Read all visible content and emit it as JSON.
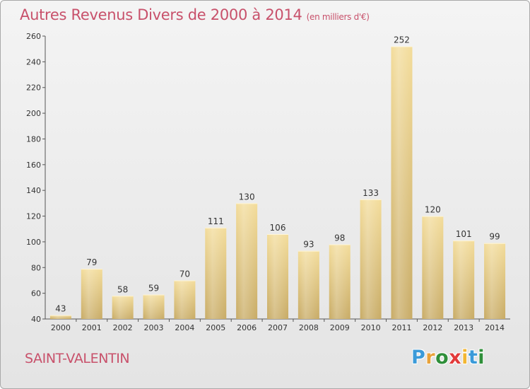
{
  "header": {
    "title": "Autres Revenus Divers de 2000 à 2014",
    "subtitle": "(en milliers d'€)"
  },
  "footer": {
    "city": "SAINT-VALENTIN",
    "logo_letters": [
      "P",
      "r",
      "o",
      "x",
      "i",
      "t",
      "i"
    ],
    "logo_colors": [
      "#3a9ad9",
      "#e8a23a",
      "#2f8f3a",
      "#e23b3b",
      "#f2b632",
      "#3a9ad9",
      "#2f8f3a"
    ]
  },
  "chart_data": {
    "type": "bar",
    "title": "Autres Revenus Divers de 2000 à 2014",
    "subtitle": "(en milliers d'€)",
    "categories": [
      "2000",
      "2001",
      "2002",
      "2003",
      "2004",
      "2005",
      "2006",
      "2007",
      "2008",
      "2009",
      "2010",
      "2011",
      "2012",
      "2013",
      "2014"
    ],
    "values": [
      43,
      79,
      58,
      59,
      70,
      111,
      130,
      106,
      93,
      98,
      133,
      252,
      120,
      101,
      99
    ],
    "ylim": [
      40,
      260
    ],
    "yticks": [
      40,
      60,
      80,
      100,
      120,
      140,
      160,
      180,
      200,
      220,
      240,
      260
    ],
    "grid": false,
    "bar_color_light": "#f3dc9a",
    "bar_color_dark": "#c8ab65"
  }
}
